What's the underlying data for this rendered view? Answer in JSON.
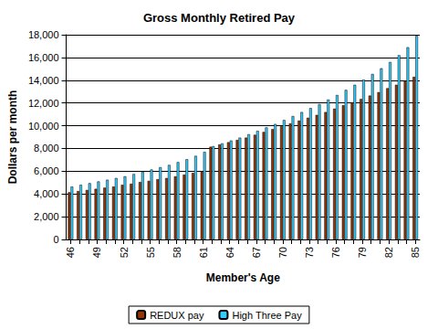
{
  "chart_data": {
    "type": "bar",
    "title": "Gross Monthly Retired Pay",
    "x_label": "Member's Age",
    "y_label": "Dollars per month",
    "categories": [
      "46",
      null,
      null,
      "49",
      null,
      null,
      "52",
      null,
      null,
      "55",
      null,
      null,
      "58",
      null,
      null,
      "61",
      null,
      null,
      "64",
      null,
      null,
      "67",
      null,
      null,
      "70",
      null,
      null,
      "73",
      null,
      null,
      "76",
      null,
      null,
      "79",
      null,
      null,
      "82",
      null,
      null,
      "85"
    ],
    "series": [
      {
        "name": "REDUX pay",
        "color": "#993300",
        "values": [
          4150,
          4250,
          4350,
          4450,
          4550,
          4650,
          4800,
          4900,
          5050,
          5150,
          5300,
          5400,
          5550,
          5700,
          5850,
          6000,
          8150,
          8350,
          8550,
          8750,
          8950,
          9200,
          9450,
          9700,
          9950,
          10200,
          10450,
          10700,
          10950,
          11200,
          11500,
          11800,
          12050,
          12350,
          12650,
          12950,
          13300,
          13600,
          13950,
          14300
        ]
      },
      {
        "name": "High Three Pay",
        "color": "#33CCFF",
        "values": [
          4650,
          4800,
          4950,
          5100,
          5250,
          5400,
          5550,
          5750,
          5950,
          6150,
          6350,
          6550,
          6800,
          7050,
          7350,
          7700,
          8200,
          8450,
          8700,
          8950,
          9250,
          9550,
          9850,
          10150,
          10500,
          10850,
          11200,
          11550,
          11900,
          12300,
          12700,
          13150,
          13600,
          14050,
          14550,
          15050,
          15600,
          16200,
          16900,
          17900
        ]
      }
    ],
    "ylim": [
      0,
      18000
    ],
    "yticks": [
      0,
      {
        "value": 2000,
        "label": "2,000"
      },
      {
        "value": 4000,
        "label": "4,000"
      },
      {
        "value": 6000,
        "label": "6,000"
      },
      {
        "value": 8000,
        "label": "8,000"
      },
      {
        "value": 10000,
        "label": "10,000"
      },
      {
        "value": 12000,
        "label": "12,000"
      },
      {
        "value": 14000,
        "label": "14,000"
      },
      {
        "value": 16000,
        "label": "16,000"
      },
      {
        "value": 18000,
        "label": "18,000"
      }
    ],
    "grid": true,
    "legend": "bottom"
  }
}
